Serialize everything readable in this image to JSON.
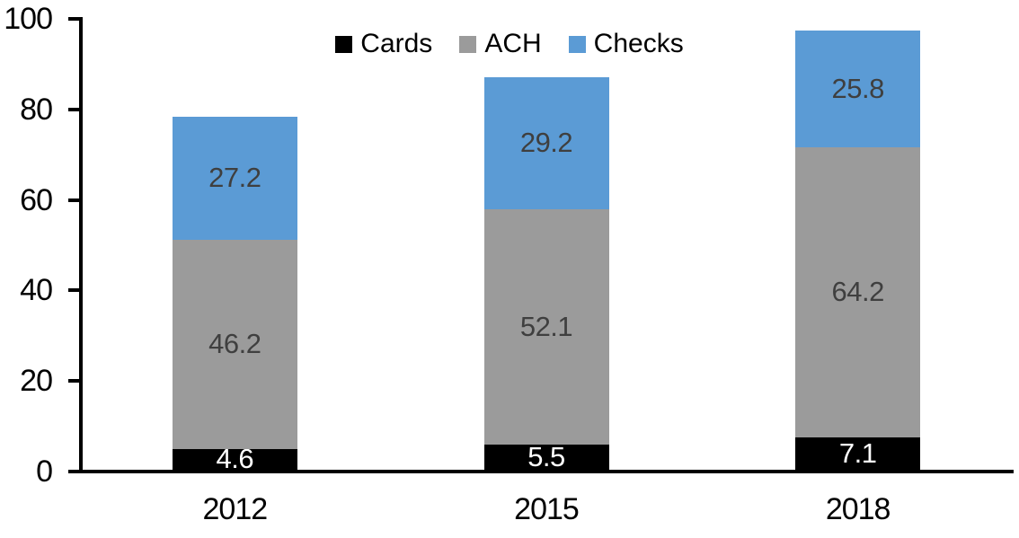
{
  "chart_data": {
    "type": "bar",
    "stacked": true,
    "title": "",
    "xlabel": "",
    "ylabel": "",
    "categories": [
      "2012",
      "2015",
      "2018"
    ],
    "series": [
      {
        "name": "Cards",
        "color": "#000000",
        "label_color": "#ffffff",
        "values": [
          4.6,
          5.5,
          7.1
        ]
      },
      {
        "name": "ACH",
        "color": "#9B9B9B",
        "label_color": "#3f3f3f",
        "values": [
          46.2,
          52.1,
          64.2
        ]
      },
      {
        "name": "Checks",
        "color": "#5B9BD5",
        "label_color": "#3f3f3f",
        "values": [
          27.2,
          29.2,
          25.8
        ]
      }
    ],
    "y_axis": {
      "min": 0,
      "max": 100,
      "tick_step": 20,
      "ticks": [
        0,
        20,
        40,
        60,
        80,
        100
      ]
    },
    "legend_position": "top-center",
    "grid": false,
    "axis_color": "#000000",
    "background_color": "#ffffff"
  }
}
